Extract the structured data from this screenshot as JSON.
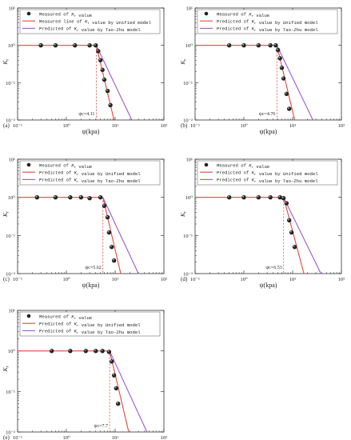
{
  "figure": {
    "legend_labels": {
      "measured": "Measured of Kr value",
      "unified_line_a": "Measured line of Kr value by Unified model",
      "unified": "Predicted of Kr value by Unified model",
      "tao_zhu": "Predicted of Kr value by Tao-Zhu model"
    },
    "colors": {
      "unified": "#e8453c",
      "tao_zhu": "#9b59d0",
      "points": "#222222",
      "threshold": "#e8453c"
    }
  },
  "chart_data": [
    {
      "type": "line",
      "panel": "(a)",
      "xlabel": "ψ(kpa)",
      "ylabel": "Kr",
      "xscale": "log",
      "yscale": "log",
      "xlim": [
        0.1,
        100
      ],
      "ylim": [
        0.01,
        10
      ],
      "x_ticks": [
        "10⁻¹",
        "10⁰",
        "10¹",
        "10²"
      ],
      "y_ticks": [
        "10⁻²",
        "10⁻¹",
        "10⁰",
        "10¹"
      ],
      "threshold": {
        "x": 4.11,
        "label": "ψc=4.11"
      },
      "legend": [
        "Measured of Kr value",
        "Measured line of Kr value by Unified model",
        "Predicted of Kr value by Tao-Zhu model"
      ],
      "series": [
        {
          "kind": "points",
          "x": [
            0.3,
            0.6,
            1.5,
            3.0,
            4.0,
            4.5,
            5.0,
            5.5,
            6.0,
            7.0,
            8.0
          ],
          "y": [
            1.0,
            1.0,
            1.0,
            1.0,
            1.0,
            0.7,
            0.4,
            0.22,
            0.12,
            0.06,
            0.025
          ]
        },
        {
          "kind": "unified",
          "x": [
            0.1,
            4.11,
            9.5
          ],
          "y": [
            1.0,
            1.0,
            0.01
          ]
        },
        {
          "kind": "tao_zhu",
          "x": [
            4.11,
            22
          ],
          "y": [
            1.0,
            0.01
          ]
        }
      ]
    },
    {
      "type": "line",
      "panel": "(b)",
      "xlabel": "ψ(kpa)",
      "ylabel": "Kr",
      "xscale": "log",
      "yscale": "log",
      "xlim": [
        0.1,
        100
      ],
      "ylim": [
        0.01,
        10
      ],
      "x_ticks": [
        "10⁻¹",
        "10⁰",
        "10¹",
        "10²"
      ],
      "y_ticks": [
        "10⁻²",
        "10⁻¹",
        "10⁰",
        "10¹"
      ],
      "threshold": {
        "x": 4.76,
        "label": "ψc=4.76"
      },
      "legend": [
        "Measured of Kr value",
        "Predicted of Kr value by Unified model",
        "Predicted of Kr value by Tao-Zhu model"
      ],
      "series": [
        {
          "kind": "points",
          "x": [
            0.5,
            1.0,
            2.0,
            3.5,
            4.5,
            5.0,
            5.5,
            6.0,
            6.5,
            7.5,
            8.5
          ],
          "y": [
            1.0,
            1.0,
            1.0,
            1.0,
            1.0,
            0.75,
            0.45,
            0.25,
            0.13,
            0.05,
            0.02
          ]
        },
        {
          "kind": "unified",
          "x": [
            0.1,
            4.76,
            11
          ],
          "y": [
            1.0,
            1.0,
            0.01
          ]
        },
        {
          "kind": "tao_zhu",
          "x": [
            4.76,
            26
          ],
          "y": [
            1.0,
            0.01
          ]
        }
      ]
    },
    {
      "type": "line",
      "panel": "(c)",
      "xlabel": "ψ(kpa)",
      "ylabel": "Kr",
      "xscale": "log",
      "yscale": "log",
      "xlim": [
        0.1,
        100
      ],
      "ylim": [
        0.01,
        10
      ],
      "x_ticks": [
        "10⁻¹",
        "10⁰",
        "10¹",
        "10²"
      ],
      "y_ticks": [
        "10⁻²",
        "10⁻¹",
        "10⁰",
        "10¹"
      ],
      "threshold": {
        "x": 5.62,
        "label": "ψc=5.62"
      },
      "legend": [
        "Measured of Kr value",
        "Predicted of Kr value by Unified model",
        "Predicted of Kr value by Tao-Zhu model"
      ],
      "series": [
        {
          "kind": "points",
          "x": [
            0.25,
            0.6,
            1.2,
            2.0,
            3.0,
            5.0,
            6.0,
            7.0,
            7.5,
            8.5,
            9.5
          ],
          "y": [
            1.0,
            1.0,
            1.0,
            1.0,
            0.95,
            1.0,
            0.6,
            0.3,
            0.12,
            0.05,
            0.022
          ]
        },
        {
          "kind": "unified",
          "x": [
            0.1,
            5.62,
            13
          ],
          "y": [
            1.0,
            1.0,
            0.01
          ]
        },
        {
          "kind": "tao_zhu",
          "x": [
            5.62,
            30
          ],
          "y": [
            1.0,
            0.01
          ]
        }
      ]
    },
    {
      "type": "line",
      "panel": "(d)",
      "xlabel": "ψ(kpa)",
      "ylabel": "Kr",
      "xscale": "log",
      "yscale": "log",
      "xlim": [
        0.1,
        100
      ],
      "ylim": [
        0.01,
        10
      ],
      "x_ticks": [
        "10⁻¹",
        "10⁰",
        "10¹",
        "10²"
      ],
      "y_ticks": [
        "10⁻²",
        "10⁻¹",
        "10⁰",
        "10¹"
      ],
      "threshold": {
        "x": 6.53,
        "label": "ψc=6.53"
      },
      "legend": [
        "Measured of Kr value",
        "Predicted of Kr value by Unified model",
        "Predicted of Kr value by Tao-Zhu model"
      ],
      "series": [
        {
          "kind": "points",
          "x": [
            0.5,
            1.0,
            2.0,
            3.5,
            5.5,
            6.5,
            7.5,
            8.5,
            9.5,
            11
          ],
          "y": [
            1.0,
            1.0,
            1.0,
            1.0,
            1.0,
            0.95,
            0.7,
            0.25,
            0.12,
            0.05
          ]
        },
        {
          "kind": "unified",
          "x": [
            0.1,
            6.53,
            17
          ],
          "y": [
            1.0,
            1.0,
            0.01
          ]
        },
        {
          "kind": "tao_zhu",
          "x": [
            6.53,
            38
          ],
          "y": [
            1.0,
            0.01
          ]
        }
      ]
    },
    {
      "type": "line",
      "panel": "(e)",
      "xlabel": "ψ(kpa)",
      "ylabel": "Kr",
      "xscale": "log",
      "yscale": "log",
      "xlim": [
        0.1,
        100
      ],
      "ylim": [
        0.01,
        10
      ],
      "x_ticks": [
        "10⁻¹",
        "10⁰",
        "10¹",
        "10²"
      ],
      "y_ticks": [
        "10⁻²",
        "10⁻¹",
        "10⁰",
        "10¹"
      ],
      "threshold": {
        "x": 7.7,
        "label": "ψc=7.7"
      },
      "legend": [
        "Measured of Kr value",
        "Predicted of Kr value by Unified model",
        "Predicted of Kr value by Tao-Zhu model"
      ],
      "series": [
        {
          "kind": "points",
          "x": [
            0.5,
            1.2,
            2.5,
            4.0,
            5.5,
            7.5,
            8.5,
            9.5,
            10.5,
            11.5
          ],
          "y": [
            1.0,
            1.0,
            1.0,
            1.0,
            1.0,
            0.95,
            0.55,
            0.25,
            0.12,
            0.05
          ]
        },
        {
          "kind": "unified",
          "x": [
            0.1,
            7.7,
            19
          ],
          "y": [
            1.0,
            1.0,
            0.01
          ]
        },
        {
          "kind": "tao_zhu",
          "x": [
            7.7,
            45
          ],
          "y": [
            1.0,
            0.01
          ]
        }
      ]
    }
  ]
}
